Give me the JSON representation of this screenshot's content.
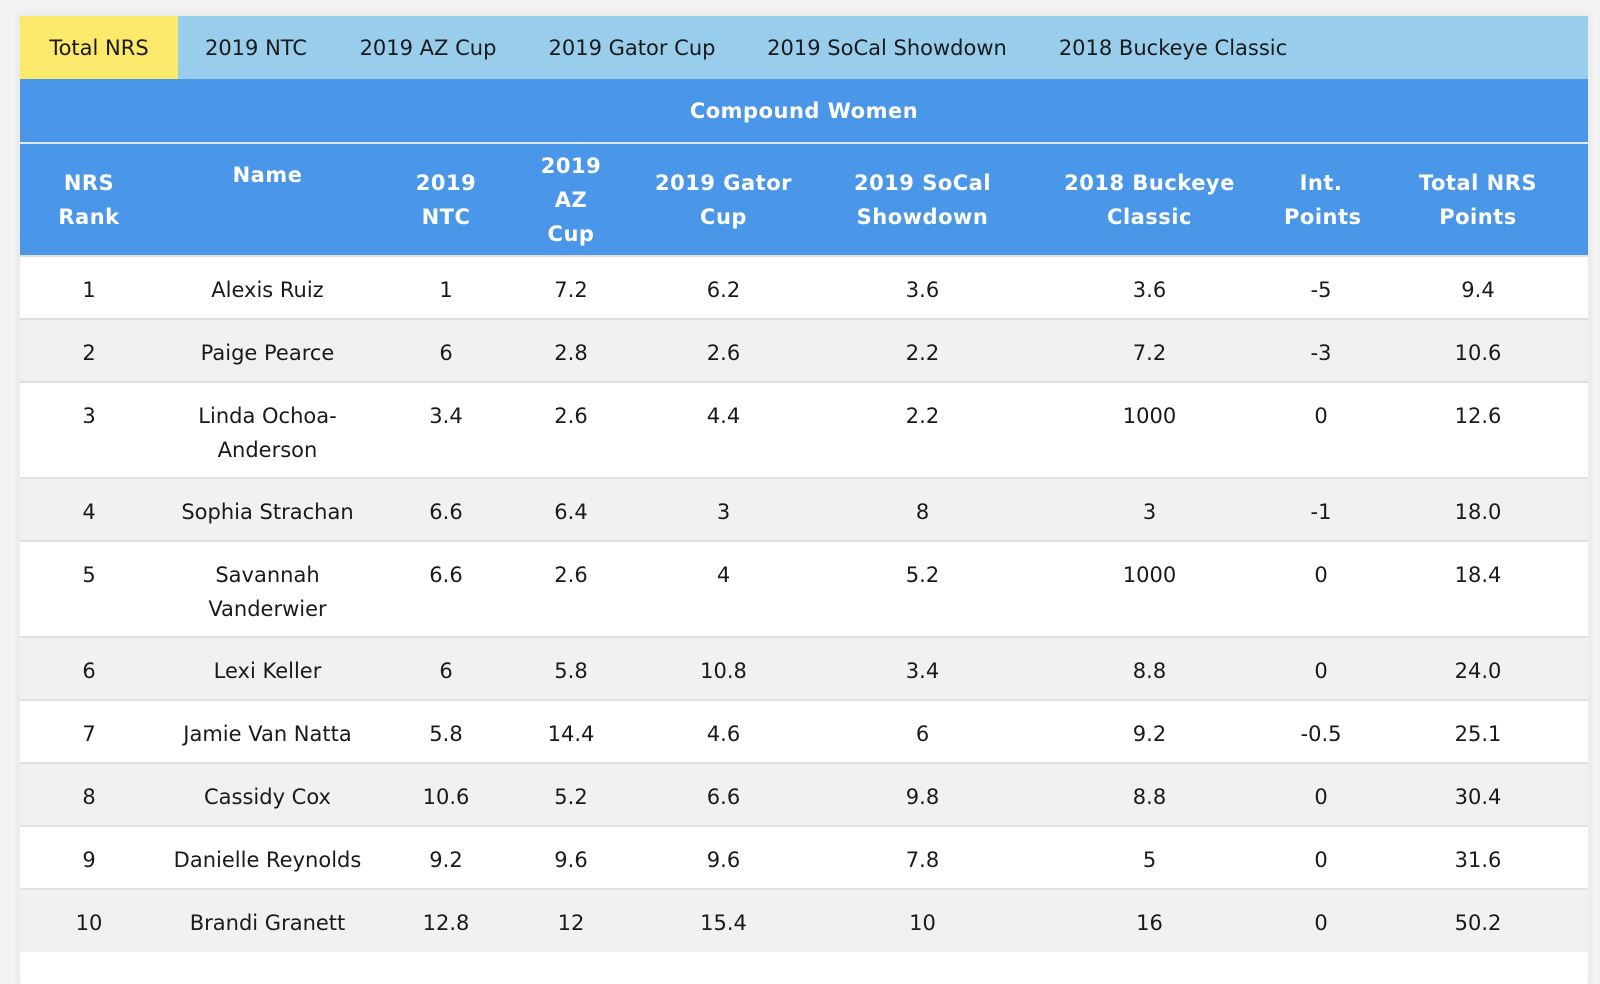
{
  "tabs": [
    {
      "label": "Total NRS",
      "active": true
    },
    {
      "label": "2019 NTC",
      "active": false
    },
    {
      "label": "2019 AZ Cup",
      "active": false
    },
    {
      "label": "2019 Gator Cup",
      "active": false
    },
    {
      "label": "2019 SoCal Showdown",
      "active": false
    },
    {
      "label": "2018 Buckeye Classic",
      "active": false
    }
  ],
  "table_title": "Compound Women",
  "columns": [
    [
      "NRS",
      "Rank"
    ],
    [
      "Name"
    ],
    [
      "2019",
      "NTC"
    ],
    [
      "2019 AZ",
      "Cup"
    ],
    [
      "2019 Gator",
      "Cup"
    ],
    [
      "2019 SoCal",
      "Showdown"
    ],
    [
      "2018 Buckeye",
      "Classic"
    ],
    [
      "Int.",
      "Points"
    ],
    [
      "Total NRS",
      "Points"
    ]
  ],
  "rows": [
    [
      "1",
      "Alexis Ruiz",
      "1",
      "7.2",
      "6.2",
      "3.6",
      "3.6",
      "-5",
      "9.4"
    ],
    [
      "2",
      "Paige Pearce",
      "6",
      "2.8",
      "2.6",
      "2.2",
      "7.2",
      "-3",
      "10.6"
    ],
    [
      "3",
      "Linda Ochoa-Anderson",
      "3.4",
      "2.6",
      "4.4",
      "2.2",
      "1000",
      "0",
      "12.6"
    ],
    [
      "4",
      "Sophia Strachan",
      "6.6",
      "6.4",
      "3",
      "8",
      "3",
      "-1",
      "18.0"
    ],
    [
      "5",
      "Savannah Vanderwier",
      "6.6",
      "2.6",
      "4",
      "5.2",
      "1000",
      "0",
      "18.4"
    ],
    [
      "6",
      "Lexi Keller",
      "6",
      "5.8",
      "10.8",
      "3.4",
      "8.8",
      "0",
      "24.0"
    ],
    [
      "7",
      "Jamie Van Natta",
      "5.8",
      "14.4",
      "4.6",
      "6",
      "9.2",
      "-0.5",
      "25.1"
    ],
    [
      "8",
      "Cassidy Cox",
      "10.6",
      "5.2",
      "6.6",
      "9.8",
      "8.8",
      "0",
      "30.4"
    ],
    [
      "9",
      "Danielle Reynolds",
      "9.2",
      "9.6",
      "9.6",
      "7.8",
      "5",
      "0",
      "31.6"
    ],
    [
      "10",
      "Brandi Granett",
      "12.8",
      "12",
      "15.4",
      "10",
      "16",
      "0",
      "50.2"
    ]
  ],
  "colors": {
    "active_tab": "#fbe96b",
    "tab_bar": "#98cdec",
    "header": "#4a96e8",
    "row_alt": "#f1f1f1"
  }
}
